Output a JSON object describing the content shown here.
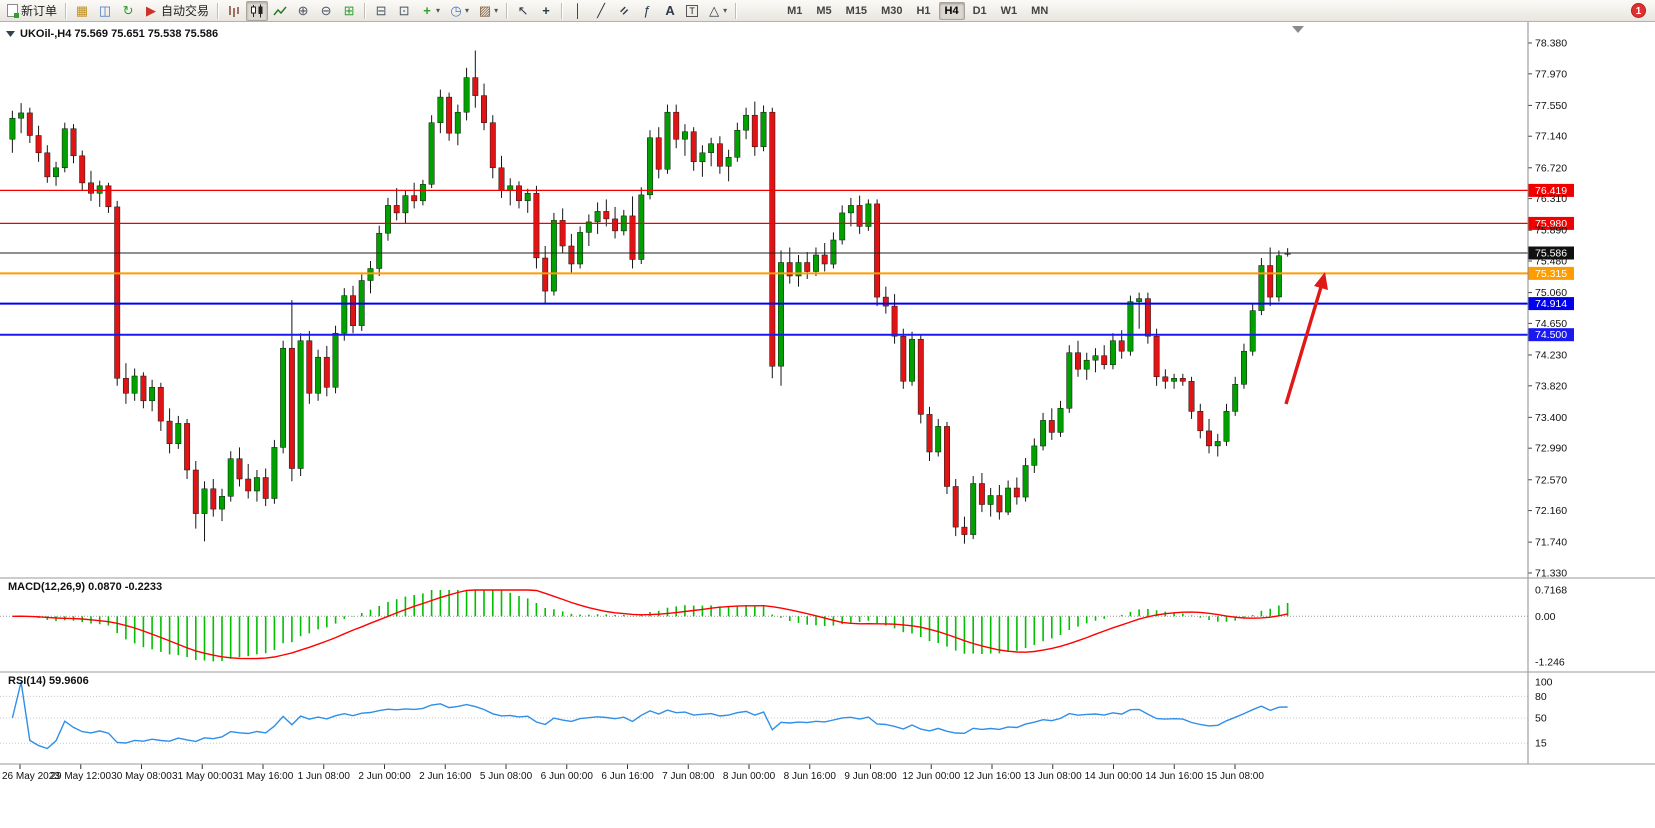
{
  "icons": {
    "terminal-icon": "▦",
    "market-watch-icon": "◫",
    "navigator-icon": "↻",
    "autotrade-icon": "▶",
    "zoom-in-icon": "⊕",
    "zoom-out-icon": "⊖",
    "tile-windows-icon": "⊞",
    "arrange-windows-icon": "⊟",
    "cascade-windows-icon": "⊡",
    "new-chart-icon": "+",
    "period-icon": "◷",
    "template-icon": "▨",
    "cursor-icon": "↖",
    "crosshair-icon": "+",
    "vline-icon": "│",
    "trendline-icon": "╱",
    "channel-icon": "=",
    "fibonacci-icon": "ƒ",
    "text-icon": "A",
    "label-icon": "T",
    "shapes-icon": "△",
    "dropdown-arrow": "▾"
  },
  "toolbar": {
    "new_order_label": "新订单",
    "auto_trading_label": "自动交易",
    "timeframes": [
      "M1",
      "M5",
      "M15",
      "M30",
      "H1",
      "H4",
      "D1",
      "W1",
      "MN"
    ],
    "active_timeframe": "H4",
    "notification_count": "1"
  },
  "chart": {
    "title": "UKOil-,H4 75.569 75.651 75.538 75.586",
    "current_price": "75.586",
    "price_scale": [
      "78.380",
      "77.970",
      "77.550",
      "77.140",
      "76.720",
      "76.310",
      "75.890",
      "75.480",
      "75.060",
      "74.650",
      "74.230",
      "73.820",
      "73.400",
      "72.990",
      "72.570",
      "72.160",
      "71.740",
      "71.330"
    ],
    "time_scale": [
      "26 May 2023",
      "29 May 12:00",
      "30 May 08:00",
      "31 May 00:00",
      "31 May 16:00",
      "1 Jun 08:00",
      "2 Jun 00:00",
      "2 Jun 16:00",
      "5 Jun 08:00",
      "6 Jun 00:00",
      "6 Jun 16:00",
      "7 Jun 08:00",
      "8 Jun 00:00",
      "8 Jun 16:00",
      "9 Jun 08:00",
      "12 Jun 00:00",
      "12 Jun 16:00",
      "13 Jun 08:00",
      "14 Jun 00:00",
      "14 Jun 16:00",
      "15 Jun 08:00"
    ],
    "hlines": [
      {
        "price": 76.419,
        "label": "76.419",
        "color": "#f20000",
        "width": 1.3
      },
      {
        "price": 75.98,
        "label": "75.980",
        "color": "#f20000",
        "width": 1.3
      },
      {
        "price": 75.315,
        "label": "75.315",
        "color": "#ff9c00",
        "width": 2
      },
      {
        "price": 74.914,
        "label": "74.914",
        "color": "#0000ee",
        "width": 2
      },
      {
        "price": 74.5,
        "label": "74.500",
        "color": "#1a1af0",
        "width": 2
      }
    ],
    "annotations": [
      {
        "type": "up-arrow",
        "color": "#e01818"
      }
    ]
  },
  "macd_panel": {
    "label": "MACD(12,26,9) 0.0870 -0.2233",
    "scale": [
      {
        "v": 0.7168,
        "label": "0.7168"
      },
      {
        "v": 0,
        "label": "0.00"
      },
      {
        "v": -1.246,
        "label": "-1.246"
      }
    ]
  },
  "rsi_panel": {
    "label": "RSI(14) 59.9606",
    "scale": [
      {
        "v": 100,
        "label": "100"
      },
      {
        "v": 80,
        "label": "80"
      },
      {
        "v": 50,
        "label": "50"
      },
      {
        "v": 15,
        "label": "15"
      }
    ]
  },
  "chart_data": {
    "type": "candlestick",
    "symbol": "UKOil-",
    "timeframe": "H4",
    "title": "UKOil-,H4",
    "ohlc_current": {
      "open": 75.569,
      "high": 75.651,
      "low": 75.538,
      "close": 75.586
    },
    "price_range": [
      71.303,
      78.553
    ],
    "up_color": "#00a000",
    "down_color": "#e01414",
    "wick_color": "#151515",
    "candles": [
      [
        77.1,
        77.48,
        76.92,
        77.38
      ],
      [
        77.38,
        77.58,
        77.18,
        77.45
      ],
      [
        77.45,
        77.52,
        77.05,
        77.15
      ],
      [
        77.15,
        77.28,
        76.8,
        76.92
      ],
      [
        76.92,
        77.02,
        76.52,
        76.6
      ],
      [
        76.6,
        76.8,
        76.48,
        76.72
      ],
      [
        76.72,
        77.32,
        76.66,
        77.24
      ],
      [
        77.24,
        77.3,
        76.78,
        76.88
      ],
      [
        76.88,
        76.95,
        76.42,
        76.52
      ],
      [
        76.52,
        76.68,
        76.28,
        76.38
      ],
      [
        76.38,
        76.55,
        76.2,
        76.48
      ],
      [
        76.48,
        76.52,
        76.12,
        76.2
      ],
      [
        76.2,
        76.28,
        73.82,
        73.92
      ],
      [
        73.92,
        74.12,
        73.58,
        73.72
      ],
      [
        73.72,
        74.05,
        73.62,
        73.95
      ],
      [
        73.95,
        74.0,
        73.52,
        73.62
      ],
      [
        73.62,
        73.9,
        73.48,
        73.8
      ],
      [
        73.8,
        73.86,
        73.22,
        73.35
      ],
      [
        73.35,
        73.52,
        72.92,
        73.05
      ],
      [
        73.05,
        73.42,
        72.98,
        73.32
      ],
      [
        73.32,
        73.38,
        72.58,
        72.7
      ],
      [
        72.7,
        72.82,
        71.92,
        72.12
      ],
      [
        72.12,
        72.55,
        71.75,
        72.45
      ],
      [
        72.45,
        72.58,
        72.08,
        72.18
      ],
      [
        72.18,
        72.45,
        72.02,
        72.35
      ],
      [
        72.35,
        72.95,
        72.28,
        72.85
      ],
      [
        72.85,
        73.0,
        72.48,
        72.58
      ],
      [
        72.58,
        72.78,
        72.32,
        72.42
      ],
      [
        72.42,
        72.7,
        72.28,
        72.6
      ],
      [
        72.6,
        72.72,
        72.22,
        72.32
      ],
      [
        72.32,
        73.1,
        72.25,
        73.0
      ],
      [
        73.0,
        74.42,
        72.92,
        74.32
      ],
      [
        74.32,
        74.96,
        72.55,
        72.72
      ],
      [
        72.72,
        74.52,
        72.62,
        74.42
      ],
      [
        74.42,
        74.55,
        73.58,
        73.72
      ],
      [
        73.72,
        74.3,
        73.62,
        74.2
      ],
      [
        74.2,
        74.35,
        73.68,
        73.8
      ],
      [
        73.8,
        74.62,
        73.72,
        74.52
      ],
      [
        74.52,
        75.12,
        74.42,
        75.02
      ],
      [
        75.02,
        75.15,
        74.52,
        74.62
      ],
      [
        74.62,
        75.3,
        74.55,
        75.22
      ],
      [
        75.22,
        75.48,
        75.05,
        75.38
      ],
      [
        75.38,
        75.95,
        75.28,
        75.85
      ],
      [
        75.85,
        76.32,
        75.75,
        76.22
      ],
      [
        76.22,
        76.45,
        76.02,
        76.12
      ],
      [
        76.12,
        76.42,
        75.98,
        76.35
      ],
      [
        76.35,
        76.52,
        76.18,
        76.28
      ],
      [
        76.28,
        76.56,
        76.22,
        76.5
      ],
      [
        76.5,
        77.42,
        76.45,
        77.32
      ],
      [
        77.32,
        77.76,
        77.18,
        77.66
      ],
      [
        77.66,
        77.72,
        77.08,
        77.18
      ],
      [
        77.18,
        77.56,
        77.02,
        77.46
      ],
      [
        77.46,
        78.05,
        77.35,
        77.92
      ],
      [
        77.92,
        78.28,
        77.52,
        77.68
      ],
      [
        77.68,
        77.84,
        77.22,
        77.32
      ],
      [
        77.32,
        77.42,
        76.58,
        76.72
      ],
      [
        76.72,
        76.88,
        76.32,
        76.42
      ],
      [
        76.42,
        76.58,
        76.22,
        76.48
      ],
      [
        76.48,
        76.54,
        76.18,
        76.28
      ],
      [
        76.28,
        76.44,
        76.12,
        76.38
      ],
      [
        76.38,
        76.48,
        75.38,
        75.52
      ],
      [
        75.52,
        75.68,
        74.92,
        75.08
      ],
      [
        75.08,
        76.12,
        75.02,
        76.02
      ],
      [
        76.02,
        76.18,
        75.58,
        75.68
      ],
      [
        75.68,
        75.84,
        75.32,
        75.44
      ],
      [
        75.44,
        75.94,
        75.38,
        75.86
      ],
      [
        75.86,
        76.1,
        75.68,
        76.0
      ],
      [
        76.0,
        76.26,
        75.84,
        76.14
      ],
      [
        76.14,
        76.3,
        75.94,
        76.04
      ],
      [
        76.04,
        76.2,
        75.78,
        75.88
      ],
      [
        75.88,
        76.16,
        75.82,
        76.08
      ],
      [
        76.08,
        76.34,
        75.38,
        75.5
      ],
      [
        75.5,
        76.46,
        75.44,
        76.36
      ],
      [
        76.36,
        77.22,
        76.3,
        77.12
      ],
      [
        77.12,
        77.26,
        76.58,
        76.7
      ],
      [
        76.7,
        77.56,
        76.64,
        77.46
      ],
      [
        77.46,
        77.56,
        76.98,
        77.1
      ],
      [
        77.1,
        77.3,
        76.88,
        77.2
      ],
      [
        77.2,
        77.26,
        76.68,
        76.8
      ],
      [
        76.8,
        77.02,
        76.6,
        76.92
      ],
      [
        76.92,
        77.12,
        76.74,
        77.04
      ],
      [
        77.04,
        77.14,
        76.64,
        76.74
      ],
      [
        76.74,
        76.96,
        76.54,
        76.86
      ],
      [
        76.86,
        77.32,
        76.8,
        77.22
      ],
      [
        77.22,
        77.52,
        77.1,
        77.42
      ],
      [
        77.42,
        77.6,
        76.88,
        77.0
      ],
      [
        77.0,
        77.55,
        76.94,
        77.46
      ],
      [
        77.46,
        77.52,
        73.92,
        74.08
      ],
      [
        74.08,
        75.62,
        73.82,
        75.46
      ],
      [
        75.46,
        75.66,
        75.18,
        75.28
      ],
      [
        75.28,
        75.56,
        75.14,
        75.46
      ],
      [
        75.46,
        75.6,
        75.24,
        75.34
      ],
      [
        75.34,
        75.66,
        75.28,
        75.56
      ],
      [
        75.56,
        75.72,
        75.34,
        75.44
      ],
      [
        75.44,
        75.86,
        75.38,
        75.76
      ],
      [
        75.76,
        76.22,
        75.7,
        76.12
      ],
      [
        76.12,
        76.32,
        75.94,
        76.22
      ],
      [
        76.22,
        76.35,
        75.84,
        75.94
      ],
      [
        75.94,
        76.3,
        75.88,
        76.24
      ],
      [
        76.24,
        76.3,
        74.88,
        75.0
      ],
      [
        75.0,
        75.14,
        74.78,
        74.88
      ],
      [
        74.88,
        75.04,
        74.38,
        74.48
      ],
      [
        74.48,
        74.58,
        73.78,
        73.88
      ],
      [
        73.88,
        74.54,
        73.82,
        74.44
      ],
      [
        74.44,
        74.5,
        73.32,
        73.44
      ],
      [
        73.44,
        73.54,
        72.82,
        72.94
      ],
      [
        72.94,
        73.38,
        72.88,
        73.28
      ],
      [
        73.28,
        73.34,
        72.38,
        72.48
      ],
      [
        72.48,
        72.58,
        71.82,
        71.94
      ],
      [
        71.94,
        72.08,
        71.72,
        71.84
      ],
      [
        71.84,
        72.62,
        71.78,
        72.52
      ],
      [
        72.52,
        72.66,
        72.14,
        72.24
      ],
      [
        72.24,
        72.46,
        72.08,
        72.36
      ],
      [
        72.36,
        72.5,
        72.04,
        72.14
      ],
      [
        72.14,
        72.56,
        72.1,
        72.46
      ],
      [
        72.46,
        72.6,
        72.24,
        72.34
      ],
      [
        72.34,
        72.86,
        72.28,
        72.76
      ],
      [
        72.76,
        73.12,
        72.66,
        73.02
      ],
      [
        73.02,
        73.46,
        72.96,
        73.36
      ],
      [
        73.36,
        73.52,
        73.1,
        73.2
      ],
      [
        73.2,
        73.62,
        73.14,
        73.52
      ],
      [
        73.52,
        74.36,
        73.46,
        74.26
      ],
      [
        74.26,
        74.42,
        73.94,
        74.04
      ],
      [
        74.04,
        74.26,
        73.9,
        74.16
      ],
      [
        74.16,
        74.32,
        74.0,
        74.22
      ],
      [
        74.22,
        74.36,
        74.04,
        74.1
      ],
      [
        74.1,
        74.52,
        74.04,
        74.42
      ],
      [
        74.42,
        74.56,
        74.18,
        74.28
      ],
      [
        74.28,
        75.02,
        74.22,
        74.94
      ],
      [
        74.94,
        75.06,
        74.58,
        74.98
      ],
      [
        74.98,
        75.06,
        74.38,
        74.48
      ],
      [
        74.48,
        74.58,
        73.82,
        73.94
      ],
      [
        73.94,
        74.04,
        73.78,
        73.88
      ],
      [
        73.88,
        73.98,
        73.78,
        73.92
      ],
      [
        73.92,
        73.98,
        73.82,
        73.88
      ],
      [
        73.88,
        73.94,
        73.38,
        73.48
      ],
      [
        73.48,
        73.58,
        73.12,
        73.22
      ],
      [
        73.22,
        73.38,
        72.92,
        73.02
      ],
      [
        73.02,
        73.18,
        72.88,
        73.08
      ],
      [
        73.08,
        73.58,
        73.02,
        73.48
      ],
      [
        73.48,
        73.94,
        73.42,
        73.84
      ],
      [
        73.84,
        74.38,
        73.78,
        74.28
      ],
      [
        74.28,
        74.92,
        74.22,
        74.82
      ],
      [
        74.82,
        75.52,
        74.76,
        75.42
      ],
      [
        75.42,
        75.66,
        74.88,
        75.0
      ],
      [
        75.0,
        75.62,
        74.94,
        75.55
      ],
      [
        75.569,
        75.651,
        75.538,
        75.586
      ]
    ],
    "macd": {
      "params": "12,26,9",
      "hist_color": "#00c000",
      "signal_color": "#ff0000",
      "range": [
        -1.246,
        0.7168
      ]
    },
    "rsi": {
      "params": "14",
      "color": "#2f8fe8",
      "range": [
        0,
        100
      ]
    }
  }
}
